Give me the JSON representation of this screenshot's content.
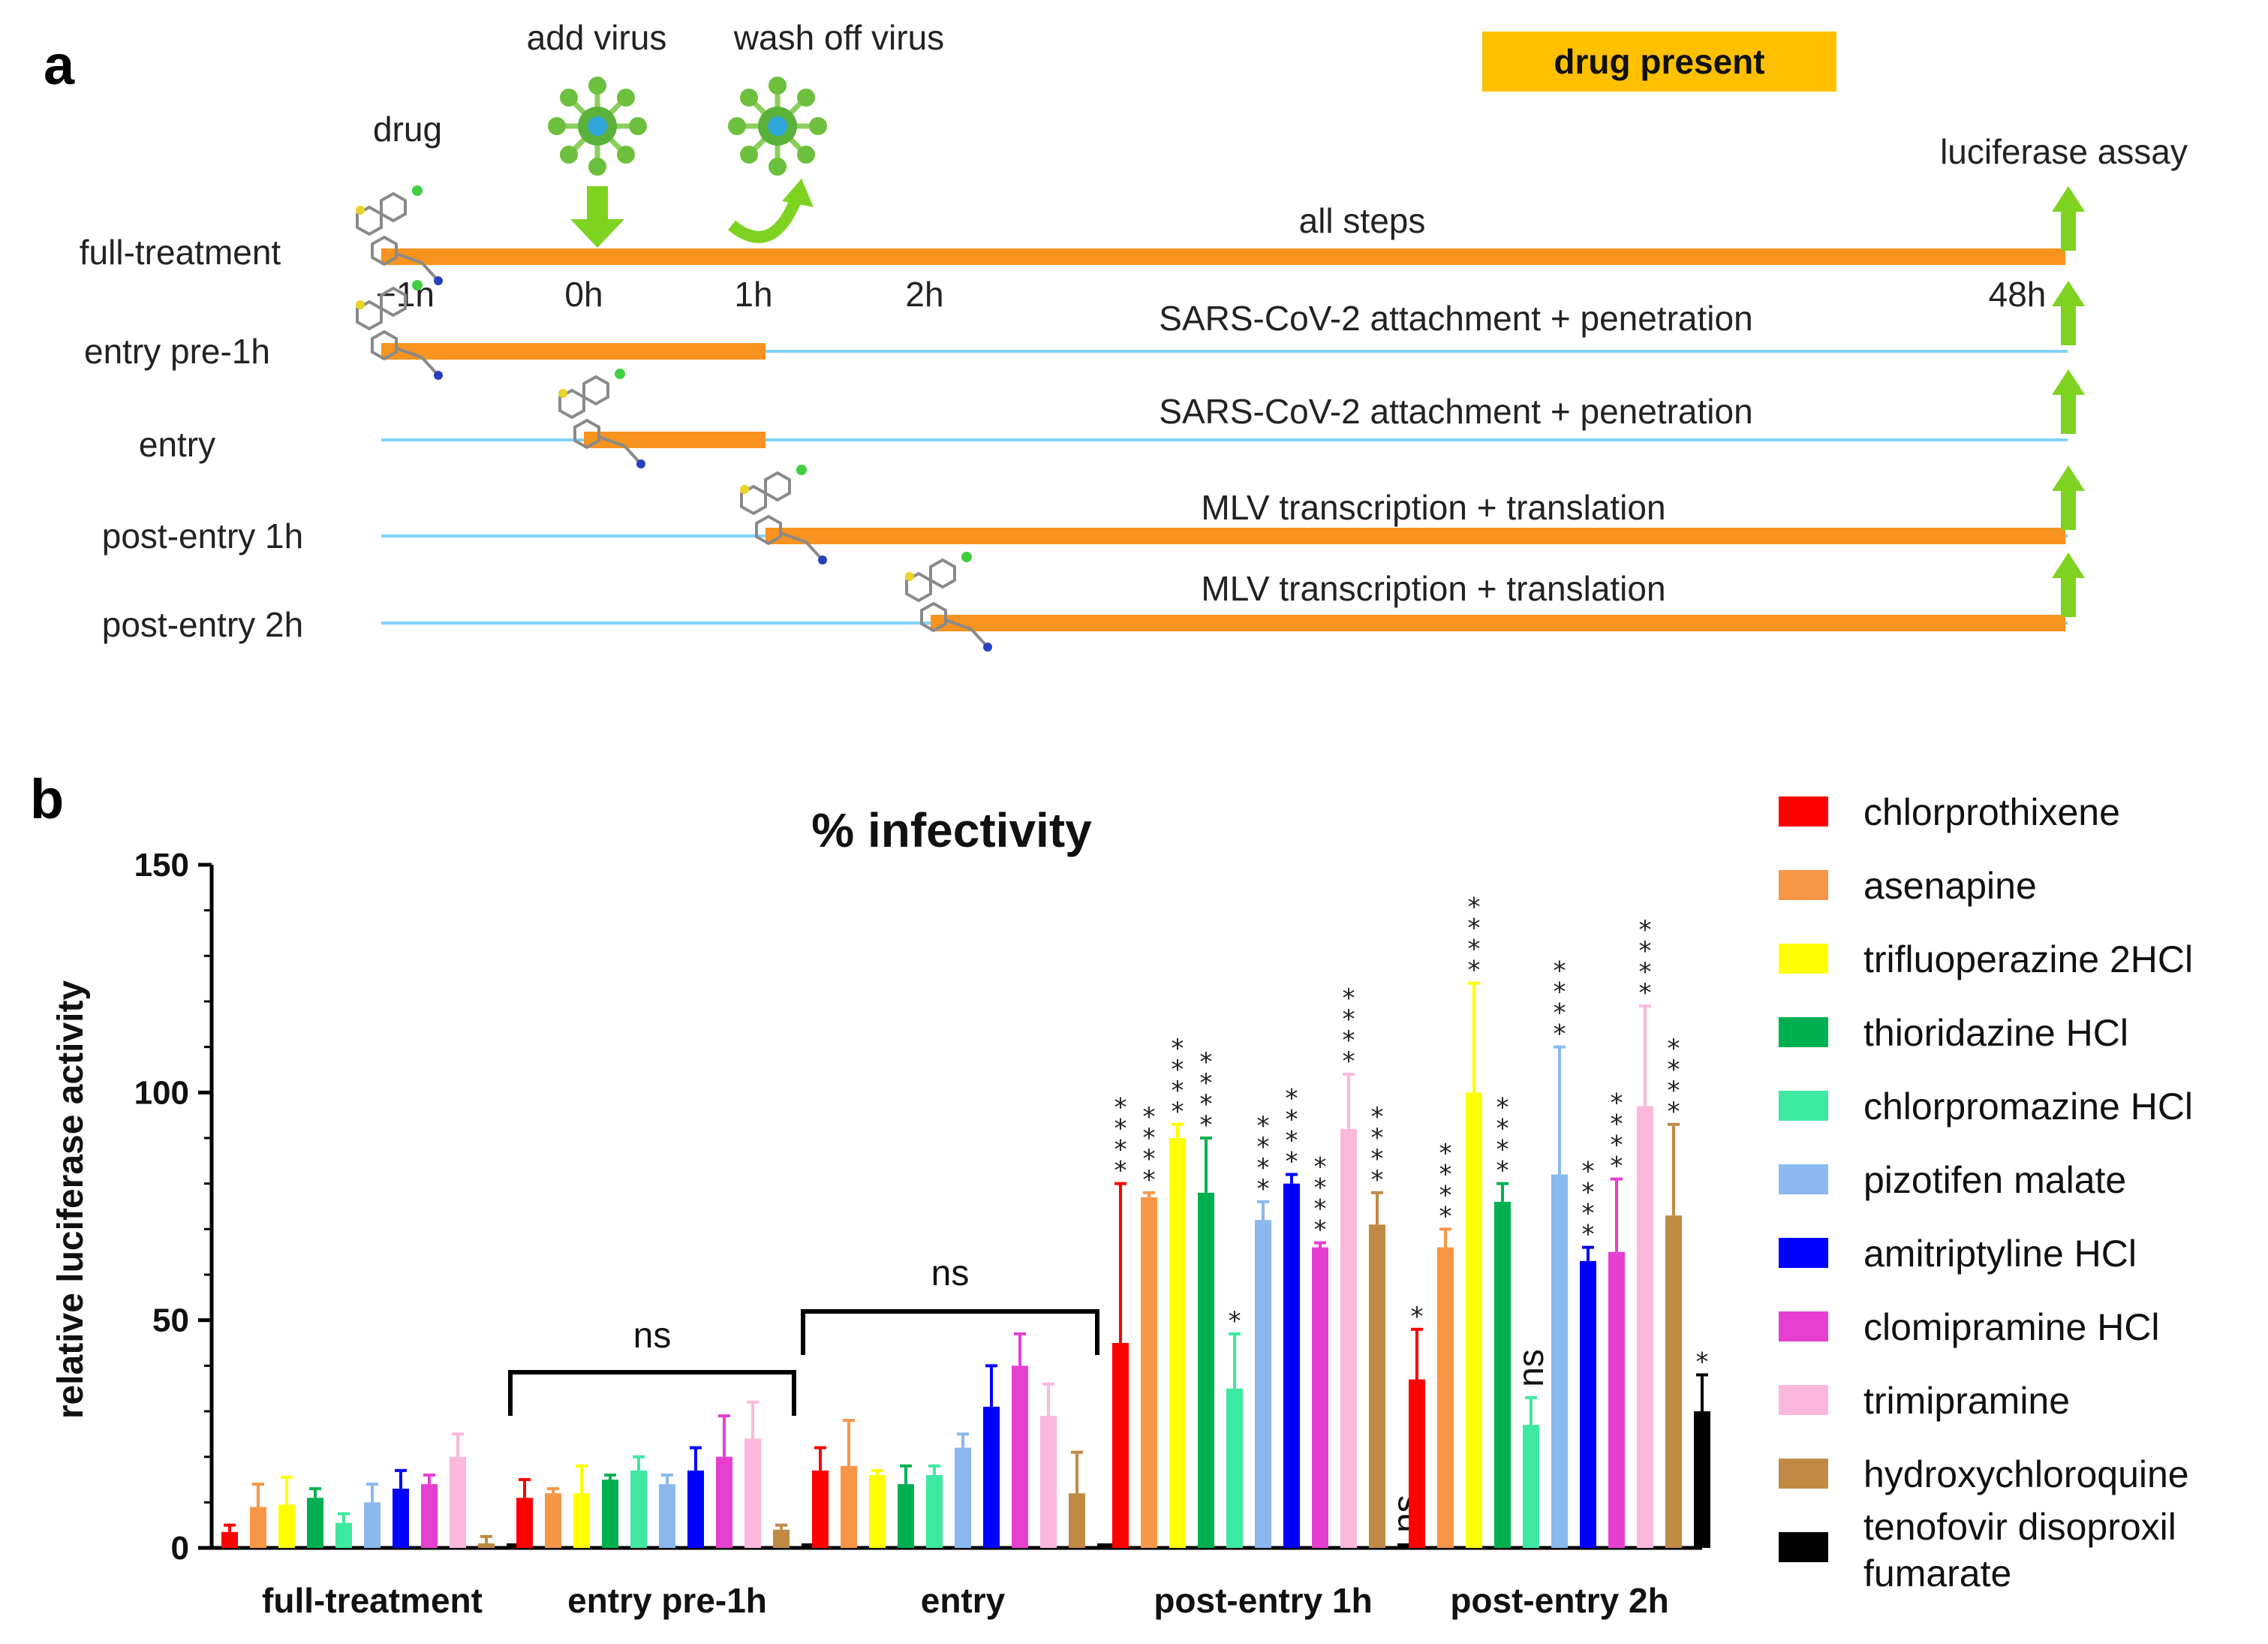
{
  "panel_a": {
    "label": "a",
    "drug_present_label": "drug present",
    "drug_label": "drug",
    "add_virus_label": "add virus",
    "wash_off_label": "wash off  virus",
    "luciferase_label": "luciferase assay",
    "time_labels": [
      "−1h",
      "0h",
      "1h",
      "2h",
      "48h"
    ],
    "rows": [
      {
        "name": "full-treatment",
        "start_h": -1,
        "end_h": 48,
        "desc": "all steps"
      },
      {
        "name": "entry  pre-1h",
        "start_h": -1,
        "end_h": 1,
        "desc": "SARS-CoV-2 attachment  + penetration"
      },
      {
        "name": "entry",
        "start_h": 0,
        "end_h": 1,
        "desc": "SARS-CoV-2 attachment  + penetration"
      },
      {
        "name": "post-entry  1h",
        "start_h": 1,
        "end_h": 48,
        "desc": "MLV transcription + translation"
      },
      {
        "name": "post-entry  2h",
        "start_h": 2,
        "end_h": 48,
        "desc": "MLV transcription + translation"
      }
    ],
    "colors": {
      "bar": "#f7931e",
      "line": "#7fd3f5",
      "arrow": "#7ed321",
      "virus": "#6dbf3e",
      "label_box": "#ffc000"
    }
  },
  "chart_data": {
    "type": "bar",
    "panel_label": "b",
    "title": "% infectivity",
    "xlabel": "",
    "ylabel": "relative luciferase activity",
    "ylim": [
      0,
      150
    ],
    "yticks": [
      0,
      50,
      100,
      150
    ],
    "categories": [
      "full-treatment",
      "entry pre-1h",
      "entry",
      "post-entry 1h",
      "post-entry 2h"
    ],
    "series": [
      {
        "name": "chlorprothixene",
        "color": "#ff0000",
        "values": [
          3.5,
          11,
          17,
          45,
          37
        ],
        "errors": [
          1.5,
          4,
          5,
          35,
          11
        ],
        "sig": [
          "",
          "",
          "",
          "****",
          "*"
        ]
      },
      {
        "name": "asenapine",
        "color": "#f79646",
        "values": [
          9,
          12,
          18,
          77,
          66
        ],
        "errors": [
          5,
          1,
          10,
          1,
          4
        ],
        "sig": [
          "",
          "",
          "",
          "****",
          "****"
        ]
      },
      {
        "name": "trifluoperazine 2HCl",
        "color": "#ffff00",
        "values": [
          9.5,
          12,
          16,
          90,
          100
        ],
        "errors": [
          6,
          6,
          1,
          3,
          24
        ],
        "sig": [
          "",
          "",
          "",
          "****",
          "****"
        ]
      },
      {
        "name": "thioridazine HCl",
        "color": "#00b050",
        "values": [
          11,
          15,
          14,
          78,
          76
        ],
        "errors": [
          2,
          1,
          4,
          12,
          4
        ],
        "sig": [
          "",
          "",
          "",
          "****",
          "****"
        ]
      },
      {
        "name": "chlorpromazine HCl",
        "color": "#3de8a0",
        "values": [
          5.5,
          17,
          16,
          35,
          27
        ],
        "errors": [
          2,
          3,
          2,
          12,
          6
        ],
        "sig": [
          "",
          "",
          "",
          "*",
          "ns"
        ]
      },
      {
        "name": "pizotifen malate",
        "color": "#8ab8ef",
        "values": [
          10,
          14,
          22,
          72,
          82
        ],
        "errors": [
          4,
          2,
          3,
          4,
          28
        ],
        "sig": [
          "",
          "",
          "",
          "****",
          "****"
        ]
      },
      {
        "name": "amitriptyline HCl",
        "color": "#0000ff",
        "values": [
          13,
          17,
          31,
          80,
          63
        ],
        "errors": [
          4,
          5,
          9,
          2,
          3
        ],
        "sig": [
          "",
          "",
          "",
          "****",
          "****"
        ]
      },
      {
        "name": "clomipramine HCl",
        "color": "#e63fd0",
        "values": [
          14,
          20,
          40,
          66,
          65
        ],
        "errors": [
          2,
          9,
          7,
          1,
          16
        ],
        "sig": [
          "",
          "",
          "",
          "****",
          "****"
        ]
      },
      {
        "name": "trimipramine",
        "color": "#fbb8dc",
        "values": [
          20,
          24,
          29,
          92,
          97
        ],
        "errors": [
          5,
          8,
          7,
          12,
          22
        ],
        "sig": [
          "",
          "",
          "",
          "****",
          "****"
        ]
      },
      {
        "name": "hydroxychloroquine",
        "color": "#c08a45",
        "values": [
          1,
          4,
          12,
          71,
          73
        ],
        "errors": [
          1.5,
          1,
          9,
          7,
          20
        ],
        "sig": [
          "",
          "",
          "",
          "****",
          "****"
        ]
      },
      {
        "name": "tenofovir disoproxil fumarate",
        "color": "#000000",
        "values": [
          1,
          1,
          1,
          1,
          30
        ],
        "errors": [
          0,
          0,
          0,
          0,
          8
        ],
        "sig": [
          "",
          "",
          "",
          "ns",
          "*"
        ]
      }
    ],
    "brackets": [
      {
        "label": "ns",
        "from_category": "entry pre-1h"
      },
      {
        "label": "ns",
        "from_category": "entry"
      }
    ],
    "legend_position": "right"
  }
}
